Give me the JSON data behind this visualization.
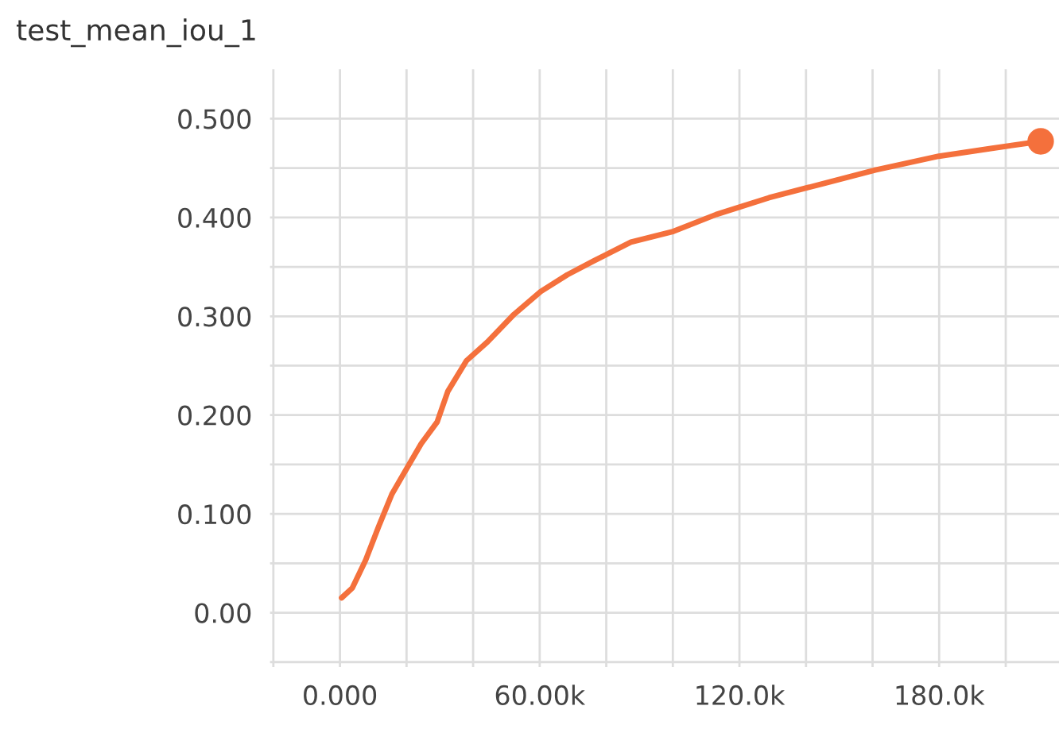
{
  "chart_data": {
    "type": "line",
    "title": "test_mean_iou_1",
    "x": [
      500,
      3700,
      7700,
      11600,
      15600,
      20400,
      24400,
      29200,
      32400,
      38000,
      44300,
      52300,
      60300,
      68300,
      76200,
      87400,
      100200,
      113000,
      128900,
      144800,
      160800,
      179900,
      195900,
      210500
    ],
    "series": [
      {
        "color": "#f4703c",
        "values": [
          0.015,
          0.025,
          0.053,
          0.087,
          0.12,
          0.148,
          0.171,
          0.193,
          0.224,
          0.255,
          0.274,
          0.302,
          0.325,
          0.342,
          0.356,
          0.375,
          0.386,
          0.403,
          0.42,
          0.434,
          0.448,
          0.462,
          0.47,
          0.477
        ]
      },
      {
        "type": "scatter",
        "color": "#f4703c",
        "values": [
          null,
          null,
          null,
          null,
          null,
          null,
          null,
          null,
          null,
          null,
          null,
          null,
          null,
          null,
          null,
          null,
          null,
          null,
          null,
          null,
          null,
          null,
          null,
          0.477
        ],
        "marker": "circle"
      }
    ],
    "xlim": [
      -21000,
      216000
    ],
    "ylim": [
      -0.055,
      0.55
    ],
    "xticks": [
      {
        "value": -20000,
        "label": null
      },
      {
        "value": 0,
        "label": "0.000"
      },
      {
        "value": 20000,
        "label": null
      },
      {
        "value": 40000,
        "label": null
      },
      {
        "value": 60000,
        "label": "60.00k"
      },
      {
        "value": 80000,
        "label": null
      },
      {
        "value": 100000,
        "label": null
      },
      {
        "value": 120000,
        "label": "120.0k"
      },
      {
        "value": 140000,
        "label": null
      },
      {
        "value": 160000,
        "label": null
      },
      {
        "value": 180000,
        "label": "180.0k"
      },
      {
        "value": 200000,
        "label": null
      }
    ],
    "yticks": [
      {
        "value": -0.05,
        "label": null
      },
      {
        "value": 0,
        "label": "0.00"
      },
      {
        "value": 0.05,
        "label": null
      },
      {
        "value": 0.1,
        "label": "0.100"
      },
      {
        "value": 0.15,
        "label": null
      },
      {
        "value": 0.2,
        "label": "0.200"
      },
      {
        "value": 0.25,
        "label": null
      },
      {
        "value": 0.3,
        "label": "0.300"
      },
      {
        "value": 0.35,
        "label": null
      },
      {
        "value": 0.4,
        "label": "0.400"
      },
      {
        "value": 0.45,
        "label": null
      },
      {
        "value": 0.5,
        "label": "0.500"
      }
    ],
    "grid": true,
    "marker": "none",
    "line_style": "solid",
    "legend": false
  }
}
